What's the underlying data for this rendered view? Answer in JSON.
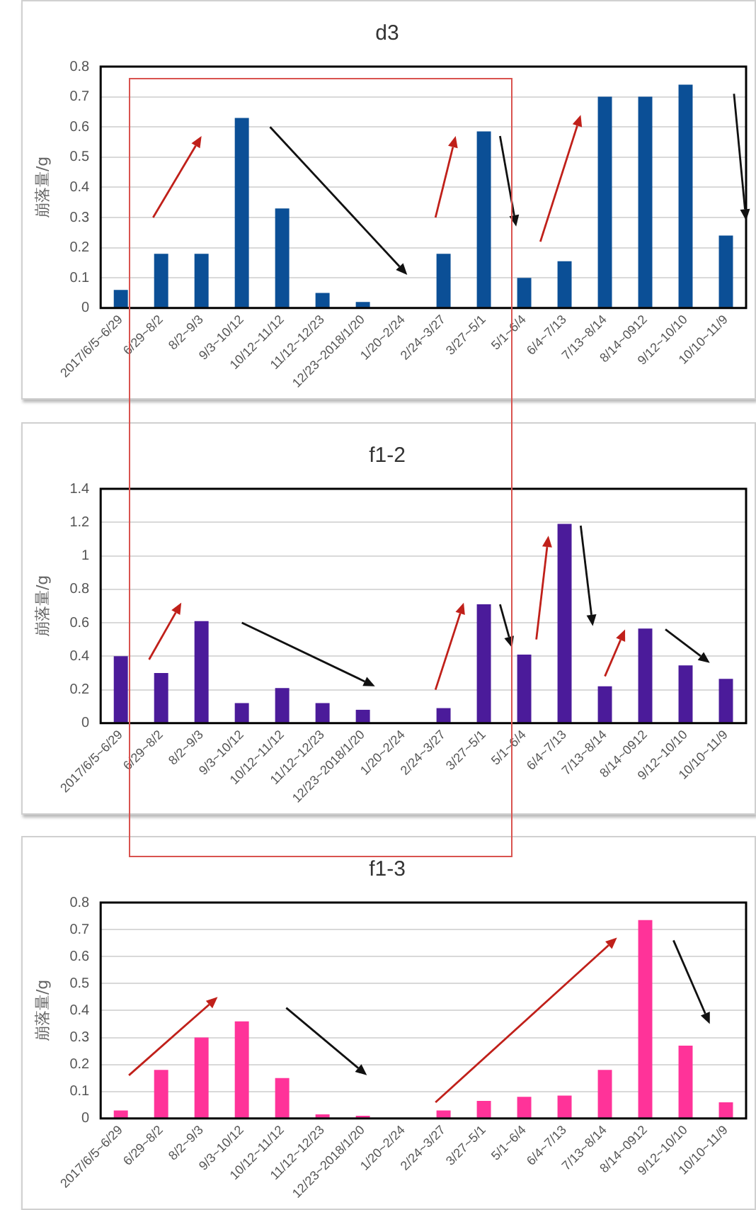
{
  "chart_data": [
    {
      "type": "bar",
      "title": "d3",
      "ylabel": "崩落量/g",
      "categories": [
        "2017/6/5~6/29",
        "6/29~8/2",
        "8/2~9/3",
        "9/3~10/12",
        "10/12~11/12",
        "11/12~12/23",
        "12/23~2018/1/20",
        "1/20~2/24",
        "2/24~3/27",
        "3/27~5/1",
        "5/1~6/4",
        "6/4~7/13",
        "7/13~8/14",
        "8/14~0912",
        "9/12~10/10",
        "10/10~11/9"
      ],
      "values": [
        0.06,
        0.18,
        0.18,
        0.63,
        0.33,
        0.05,
        0.02,
        0,
        0.18,
        0.585,
        0.1,
        0.155,
        0.7,
        0.7,
        0.74,
        0.24
      ],
      "color": "#0b4f96",
      "ylim": [
        0,
        0.8
      ],
      "yticks": [
        0,
        0.1,
        0.2,
        0.3,
        0.4,
        0.5,
        0.6,
        0.7,
        0.8
      ],
      "grid": "y",
      "legend": false
    },
    {
      "type": "bar",
      "title": "f1-2",
      "ylabel": "崩落量/g",
      "categories": [
        "2017/6/5~6/29",
        "6/29~8/2",
        "8/2~9/3",
        "9/3~10/12",
        "10/12~11/12",
        "11/12~12/23",
        "12/23~2018/1/20",
        "1/20~2/24",
        "2/24~3/27",
        "3/27~5/1",
        "5/1~6/4",
        "6/4~7/13",
        "7/13~8/14",
        "8/14~0912",
        "9/12~10/10",
        "10/10~11/9"
      ],
      "values": [
        0.4,
        0.3,
        0.61,
        0.12,
        0.21,
        0.12,
        0.08,
        0,
        0.09,
        0.71,
        0.41,
        1.19,
        0.22,
        0.565,
        0.345,
        0.265
      ],
      "color": "#4b1b9a",
      "ylim": [
        0,
        1.4
      ],
      "yticks": [
        0,
        0.2,
        0.4,
        0.6,
        0.8,
        1,
        1.2,
        1.4
      ],
      "grid": "y",
      "legend": false
    },
    {
      "type": "bar",
      "title": "f1-3",
      "ylabel": "崩落量/g",
      "categories": [
        "2017/6/5~6/29",
        "6/29~8/2",
        "8/2~9/3",
        "9/3~10/12",
        "10/12~11/12",
        "11/12~12/23",
        "12/23~2018/1/20",
        "1/20~2/24",
        "2/24~3/27",
        "3/27~5/1",
        "5/1~6/4",
        "6/4~7/13",
        "7/13~8/14",
        "8/14~0912",
        "9/12~10/10",
        "10/10~11/9"
      ],
      "values": [
        0.03,
        0.18,
        0.3,
        0.36,
        0.15,
        0.015,
        0.01,
        0,
        0.03,
        0.065,
        0.08,
        0.085,
        0.18,
        0.735,
        0.27,
        0.06
      ],
      "color": "#ff3399",
      "ylim": [
        0,
        0.8
      ],
      "yticks": [
        0,
        0.1,
        0.2,
        0.3,
        0.4,
        0.5,
        0.6,
        0.7,
        0.8
      ],
      "grid": "y",
      "legend": false
    }
  ]
}
